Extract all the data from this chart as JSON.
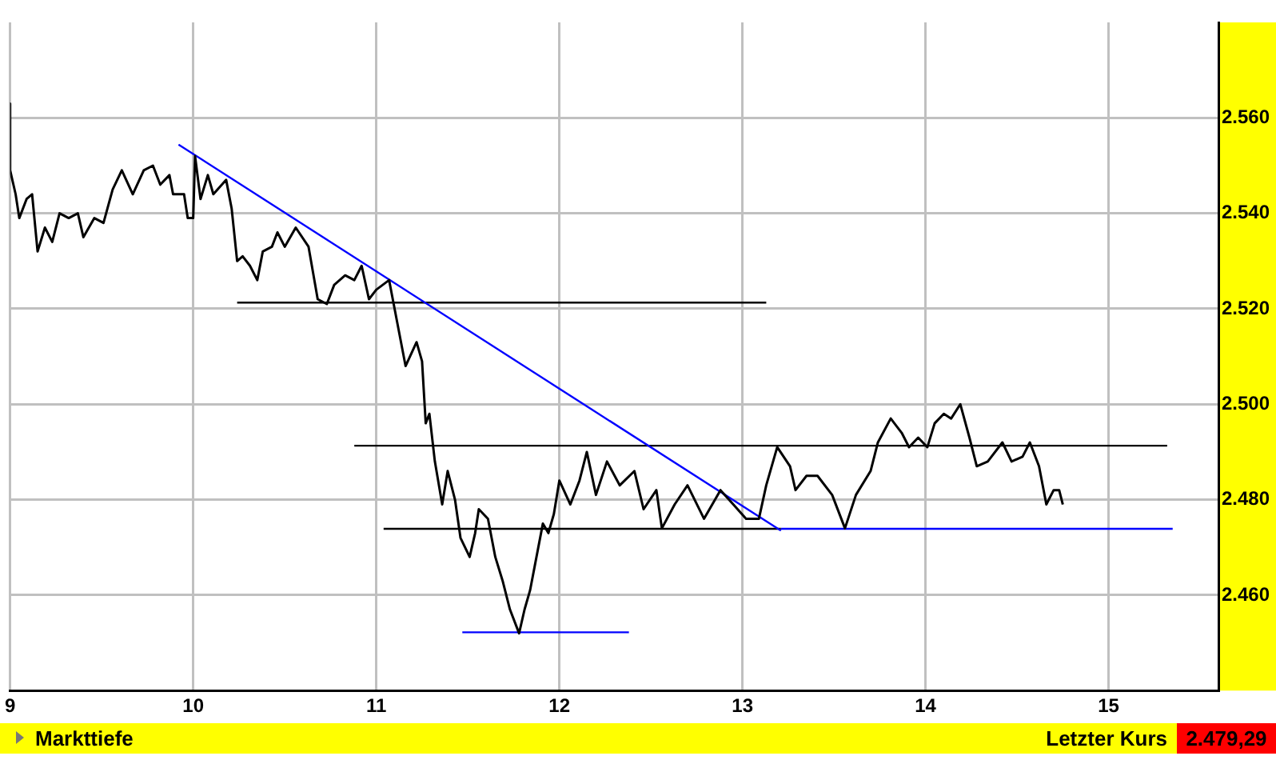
{
  "chart_data": {
    "type": "line",
    "xlim": [
      9,
      15.6
    ],
    "xticks": [
      9,
      10,
      11,
      12,
      13,
      14,
      15
    ],
    "ylim": [
      2440,
      2580
    ],
    "yticks": [
      {
        "value": 2460,
        "label": "2.460"
      },
      {
        "value": 2480,
        "label": "2.480"
      },
      {
        "value": 2500,
        "label": "2.500"
      },
      {
        "value": 2520,
        "label": "2.520"
      },
      {
        "value": 2540,
        "label": "2.540"
      },
      {
        "value": 2560,
        "label": "2.560"
      }
    ],
    "grid": true,
    "legend": false,
    "marker": "none",
    "line_style": "solid",
    "annotations": [
      "Markttiefe",
      "Letzter Kurs",
      "2.479,29"
    ],
    "series": [
      {
        "color": "#000000",
        "x": [
          9.0,
          9.0,
          9.03,
          9.05,
          9.09,
          9.12,
          9.15,
          9.19,
          9.23,
          9.27,
          9.32,
          9.37,
          9.4,
          9.46,
          9.51,
          9.56,
          9.61,
          9.67,
          9.73,
          9.78,
          9.82,
          9.87,
          9.89,
          9.95,
          9.97,
          10.0,
          10.01,
          10.04,
          10.08,
          10.11,
          10.18,
          10.21,
          10.24,
          10.27,
          10.31,
          10.35,
          10.38,
          10.43,
          10.46,
          10.5,
          10.56,
          10.63,
          10.68,
          10.73,
          10.77,
          10.83,
          10.88,
          10.92,
          10.96,
          11.0,
          11.07,
          11.09,
          11.13,
          11.16,
          11.22,
          11.25,
          11.27,
          11.29,
          11.32,
          11.36,
          11.39,
          11.43,
          11.46,
          11.51,
          11.54,
          11.56,
          11.61,
          11.65,
          11.69,
          11.73,
          11.78,
          11.81,
          11.84,
          11.87,
          11.91,
          11.94,
          11.97,
          12.0,
          12.06,
          12.11,
          12.15,
          12.2,
          12.26,
          12.33,
          12.41,
          12.46,
          12.53,
          12.56,
          12.63,
          12.7,
          12.79,
          12.88,
          12.95,
          13.02,
          13.09,
          13.13,
          13.19,
          13.26,
          13.29,
          13.35,
          13.41,
          13.49,
          13.56,
          13.62,
          13.7,
          13.74,
          13.81,
          13.87,
          13.91,
          13.96,
          14.01,
          14.05,
          14.1,
          14.14,
          14.19,
          14.24,
          14.28,
          14.34,
          14.42,
          14.47,
          14.53,
          14.57,
          14.62,
          14.66,
          14.7,
          14.73,
          14.75
        ],
        "values": [
          2563,
          2549,
          2544,
          2539,
          2543,
          2544,
          2532,
          2537,
          2534,
          2540,
          2539,
          2540,
          2535,
          2539,
          2538,
          2545,
          2549,
          2544,
          2549,
          2550,
          2546,
          2548,
          2544,
          2544,
          2539,
          2539,
          2552,
          2543,
          2548,
          2544,
          2547,
          2541,
          2530,
          2531,
          2529,
          2526,
          2532,
          2533,
          2536,
          2533,
          2537,
          2533,
          2522,
          2521,
          2525,
          2527,
          2526,
          2529,
          2522,
          2524,
          2526,
          2522,
          2514,
          2508,
          2513,
          2509,
          2496,
          2498,
          2488,
          2479,
          2486,
          2480,
          2472,
          2468,
          2473,
          2478,
          2476,
          2468,
          2463,
          2457,
          2452,
          2457,
          2461,
          2467,
          2475,
          2473,
          2477,
          2484,
          2479,
          2484,
          2490,
          2481,
          2488,
          2483,
          2486,
          2478,
          2482,
          2474,
          2479,
          2483,
          2476,
          2482,
          2479,
          2476,
          2476,
          2483,
          2491,
          2487,
          2482,
          2485,
          2485,
          2481,
          2474,
          2481,
          2486,
          2492,
          2497,
          2494,
          2491,
          2493,
          2491,
          2496,
          2498,
          2497,
          2500,
          2493,
          2487,
          2488,
          2492,
          2488,
          2489,
          2492,
          2487,
          2479,
          2482,
          2482,
          2479
        ]
      },
      {
        "type": "line",
        "color": "#0000ff",
        "x": [
          9.92,
          13.21
        ],
        "values": [
          2554.4,
          2473.5
        ]
      },
      {
        "type": "line",
        "color": "#000000",
        "x": [
          10.24,
          13.13
        ],
        "values": [
          2521.3,
          2521.3
        ]
      },
      {
        "type": "line",
        "color": "#000000",
        "x": [
          10.88,
          15.32
        ],
        "values": [
          2491.3,
          2491.3
        ]
      },
      {
        "type": "line",
        "color": "#000000",
        "x": [
          11.04,
          13.21
        ],
        "values": [
          2473.9,
          2473.9
        ]
      },
      {
        "type": "line",
        "color": "#0000ff",
        "x": [
          13.21,
          15.35
        ],
        "values": [
          2473.9,
          2473.9
        ]
      },
      {
        "type": "line",
        "color": "#0000ff",
        "x": [
          11.47,
          12.38
        ],
        "values": [
          2452.2,
          2452.2
        ]
      }
    ]
  }
}
